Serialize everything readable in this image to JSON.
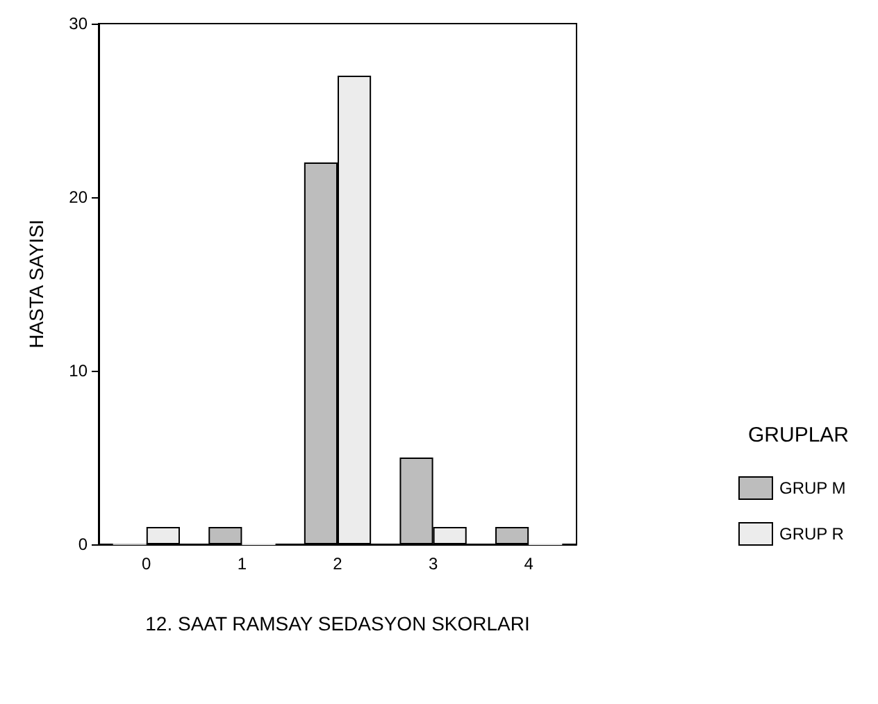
{
  "chart_data": {
    "type": "bar",
    "xlabel": "12. SAAT RAMSAY SEDASYON SKORLARI",
    "ylabel": "HASTA SAYISI",
    "legend_title": "GRUPLAR",
    "categories": [
      "0",
      "1",
      "2",
      "3",
      "4"
    ],
    "series": [
      {
        "name": "GRUP M",
        "color": "#bdbdbd",
        "values": [
          0,
          1,
          22,
          5,
          1
        ]
      },
      {
        "name": "GRUP R",
        "color": "#ececec",
        "values": [
          1,
          0,
          27,
          1,
          0
        ]
      }
    ],
    "ylim": [
      0,
      30
    ],
    "yticks": [
      0,
      10,
      20,
      30
    ],
    "grid": false,
    "legend": "right"
  }
}
